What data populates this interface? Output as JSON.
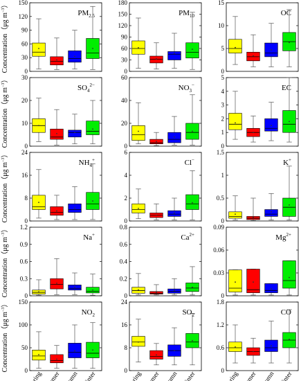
{
  "figure": {
    "seasons": [
      "Spring",
      "Summer",
      "Autumn",
      "Winter"
    ],
    "season_colors": [
      "#ffff00",
      "#ff0000",
      "#0000ff",
      "#00ee00"
    ],
    "ylabel": "Concentration（μg m⁻³）",
    "ylabel_main": "Concentration",
    "ylabel_unit": "（μg m",
    "ylabel_sup": "−3",
    "ylabel_close": "）"
  },
  "chart_data": [
    {
      "type": "box",
      "title_main": "PM",
      "title_sub": "2.5",
      "title_sup": "",
      "ylim": [
        0,
        150
      ],
      "yticks": [
        0,
        30,
        60,
        90,
        120,
        150
      ],
      "boxes": [
        {
          "min": 5,
          "q1": 33,
          "median": 42,
          "q3": 62,
          "max": 115,
          "mean": 50
        },
        {
          "min": 4,
          "q1": 14,
          "median": 22,
          "q3": 32,
          "max": 73,
          "mean": 25
        },
        {
          "min": 5,
          "q1": 20,
          "median": 28,
          "q3": 45,
          "max": 90,
          "mean": 33
        },
        {
          "min": 4,
          "q1": 28,
          "median": 40,
          "q3": 72,
          "max": 142,
          "mean": 50
        }
      ]
    },
    {
      "type": "box",
      "title_main": "PM",
      "title_sub": "10",
      "title_sup": "",
      "ylim": [
        0,
        180
      ],
      "yticks": [
        0,
        30,
        60,
        90,
        120,
        150,
        180
      ],
      "boxes": [
        {
          "min": 8,
          "q1": 45,
          "median": 60,
          "q3": 80,
          "max": 140,
          "mean": 62
        },
        {
          "min": 6,
          "q1": 22,
          "median": 32,
          "q3": 40,
          "max": 75,
          "mean": 33
        },
        {
          "min": 8,
          "q1": 30,
          "median": 45,
          "q3": 52,
          "max": 100,
          "mean": 47
        },
        {
          "min": 5,
          "q1": 35,
          "median": 50,
          "q3": 75,
          "max": 155,
          "mean": 58
        }
      ]
    },
    {
      "type": "box",
      "title_main": "OC",
      "title_sub": "",
      "title_sup": "",
      "ylim": [
        0,
        15
      ],
      "yticks": [
        0,
        5,
        10,
        15
      ],
      "boxes": [
        {
          "min": 1.5,
          "q1": 4,
          "median": 5,
          "q3": 7,
          "max": 12,
          "mean": 5.2
        },
        {
          "min": 1,
          "q1": 2.3,
          "median": 3.2,
          "q3": 4.2,
          "max": 8,
          "mean": 3.4
        },
        {
          "min": 1,
          "q1": 3.2,
          "median": 4,
          "q3": 6.2,
          "max": 10.5,
          "mean": 4.7
        },
        {
          "min": 1,
          "q1": 4.5,
          "median": 6.5,
          "q3": 8.5,
          "max": 13.5,
          "mean": 6.3
        }
      ]
    },
    {
      "type": "box",
      "title_main": "SO",
      "title_sub": "4",
      "title_sup": "2−",
      "ylim": [
        0,
        30
      ],
      "yticks": [
        0,
        10,
        20,
        30
      ],
      "boxes": [
        {
          "min": 2,
          "q1": 6,
          "median": 9,
          "q3": 12,
          "max": 21,
          "mean": 9
        },
        {
          "min": 0.5,
          "q1": 3,
          "median": 4,
          "q3": 7.5,
          "max": 16,
          "mean": 5.5
        },
        {
          "min": 1,
          "q1": 4,
          "median": 6,
          "q3": 7,
          "max": 14,
          "mean": 6
        },
        {
          "min": 1,
          "q1": 5,
          "median": 6.5,
          "q3": 11,
          "max": 20,
          "mean": 7.5
        }
      ]
    },
    {
      "type": "box",
      "title_main": "NO",
      "title_sub": "3",
      "title_sup": "−",
      "ylim": [
        0,
        60
      ],
      "yticks": [
        0,
        20,
        40,
        60
      ],
      "boxes": [
        {
          "min": 2,
          "q1": 5,
          "median": 10,
          "q3": 18,
          "max": 38,
          "mean": 13
        },
        {
          "min": 0.5,
          "q1": 2,
          "median": 3,
          "q3": 6,
          "max": 12,
          "mean": 4
        },
        {
          "min": 1,
          "q1": 3,
          "median": 6,
          "q3": 12,
          "max": 26,
          "mean": 8
        },
        {
          "min": 1,
          "q1": 6,
          "median": 12,
          "q3": 20,
          "max": 45,
          "mean": 13
        }
      ]
    },
    {
      "type": "box",
      "title_main": "EC",
      "title_sub": "",
      "title_sup": "",
      "ylim": [
        0,
        5
      ],
      "yticks": [
        0,
        1,
        2,
        3,
        4,
        5
      ],
      "boxes": [
        {
          "min": 0.5,
          "q1": 1.2,
          "median": 1.6,
          "q3": 2.4,
          "max": 4,
          "mean": 1.7
        },
        {
          "min": 0.3,
          "q1": 0.7,
          "median": 1,
          "q3": 1.3,
          "max": 2.2,
          "mean": 1
        },
        {
          "min": 0.4,
          "q1": 1.1,
          "median": 1.3,
          "q3": 2,
          "max": 3.2,
          "mean": 1.5
        },
        {
          "min": 0.3,
          "q1": 1,
          "median": 1.6,
          "q3": 2.6,
          "max": 5,
          "mean": 1.8
        }
      ]
    },
    {
      "type": "box",
      "title_main": "NH",
      "title_sub": "4",
      "title_sup": "+",
      "ylim": [
        0,
        24
      ],
      "yticks": [
        0,
        8,
        16,
        24
      ],
      "boxes": [
        {
          "min": 1,
          "q1": 4,
          "median": 5,
          "q3": 9,
          "max": 18,
          "mean": 6.5
        },
        {
          "min": 0.5,
          "q1": 2,
          "median": 3,
          "q3": 5,
          "max": 9,
          "mean": 3.5
        },
        {
          "min": 0.5,
          "q1": 3,
          "median": 4,
          "q3": 6,
          "max": 12,
          "mean": 4.5
        },
        {
          "min": 0.5,
          "q1": 4,
          "median": 6,
          "q3": 10,
          "max": 20,
          "mean": 7
        }
      ]
    },
    {
      "type": "box",
      "title_main": "Cl",
      "title_sub": "",
      "title_sup": "−",
      "ylim": [
        0,
        6
      ],
      "yticks": [
        0,
        2,
        4,
        6
      ],
      "boxes": [
        {
          "min": 0.2,
          "q1": 0.7,
          "median": 1,
          "q3": 1.5,
          "max": 2.8,
          "mean": 1.1
        },
        {
          "min": 0.1,
          "q1": 0.3,
          "median": 0.5,
          "q3": 0.7,
          "max": 1.5,
          "mean": 0.5
        },
        {
          "min": 0.1,
          "q1": 0.4,
          "median": 0.6,
          "q3": 0.9,
          "max": 2,
          "mean": 0.7
        },
        {
          "min": 0.1,
          "q1": 1,
          "median": 1.5,
          "q3": 2.3,
          "max": 4.4,
          "mean": 1.6
        }
      ]
    },
    {
      "type": "box",
      "title_main": "K",
      "title_sub": "",
      "title_sup": "+",
      "ylim": [
        0,
        1.5
      ],
      "yticks": [
        0,
        0.5,
        1,
        1.5
      ],
      "boxes": [
        {
          "min": 0.02,
          "q1": 0.06,
          "median": 0.1,
          "q3": 0.2,
          "max": 0.55,
          "mean": 0.15
        },
        {
          "min": 0.01,
          "q1": 0.03,
          "median": 0.06,
          "q3": 0.1,
          "max": 0.5,
          "mean": 0.08
        },
        {
          "min": 0.02,
          "q1": 0.1,
          "median": 0.15,
          "q3": 0.25,
          "max": 0.6,
          "mean": 0.2
        },
        {
          "min": 0.02,
          "q1": 0.1,
          "median": 0.3,
          "q3": 0.5,
          "max": 1.2,
          "mean": 0.35
        }
      ]
    },
    {
      "type": "box",
      "title_main": "Na",
      "title_sub": "",
      "title_sup": "+",
      "ylim": [
        0,
        1.2
      ],
      "yticks": [
        0,
        0.3,
        0.6,
        0.9,
        1.2
      ],
      "boxes": [
        {
          "min": 0.01,
          "q1": 0.03,
          "median": 0.06,
          "q3": 0.1,
          "max": 0.28,
          "mean": 0.07
        },
        {
          "min": 0.02,
          "q1": 0.12,
          "median": 0.2,
          "q3": 0.3,
          "max": 0.65,
          "mean": 0.22
        },
        {
          "min": 0.02,
          "q1": 0.1,
          "median": 0.13,
          "q3": 0.19,
          "max": 0.4,
          "mean": 0.15
        },
        {
          "min": 0.01,
          "q1": 0.05,
          "median": 0.08,
          "q3": 0.15,
          "max": 0.38,
          "mean": 0.1
        }
      ]
    },
    {
      "type": "box",
      "title_main": "Ca",
      "title_sub": "",
      "title_sup": "2+",
      "ylim": [
        0,
        0.8
      ],
      "yticks": [
        0,
        0.2,
        0.4,
        0.6,
        0.8
      ],
      "boxes": [
        {
          "min": 0.01,
          "q1": 0.03,
          "median": 0.06,
          "q3": 0.1,
          "max": 0.26,
          "mean": 0.07
        },
        {
          "min": 0.01,
          "q1": 0.02,
          "median": 0.03,
          "q3": 0.05,
          "max": 0.13,
          "mean": 0.04
        },
        {
          "min": 0.01,
          "q1": 0.03,
          "median": 0.05,
          "q3": 0.08,
          "max": 0.2,
          "mean": 0.06
        },
        {
          "min": 0.01,
          "q1": 0.05,
          "median": 0.09,
          "q3": 0.15,
          "max": 0.34,
          "mean": 0.1
        }
      ]
    },
    {
      "type": "box",
      "title_main": "Mg",
      "title_sub": "",
      "title_sup": "2+",
      "ylim": [
        0,
        0.09
      ],
      "yticks": [
        0,
        0.03,
        0.06,
        0.09
      ],
      "boxes": [
        {
          "min": 0.001,
          "q1": 0.005,
          "median": 0.01,
          "q3": 0.034,
          "max": 0.034,
          "mean": 0.018
        },
        {
          "min": 0.001,
          "q1": 0.004,
          "median": 0.008,
          "q3": 0.035,
          "max": 0.035,
          "mean": 0.018
        },
        {
          "min": 0.001,
          "q1": 0.004,
          "median": 0.007,
          "q3": 0.016,
          "max": 0.016,
          "mean": 0.009
        },
        {
          "min": 0.001,
          "q1": 0.01,
          "median": 0.02,
          "q3": 0.046,
          "max": 0.046,
          "mean": 0.024
        }
      ]
    },
    {
      "type": "box",
      "title_main": "NO",
      "title_sub": "2",
      "title_sup": "",
      "ylim": [
        0,
        150
      ],
      "yticks": [
        0,
        50,
        100,
        150
      ],
      "boxes": [
        {
          "min": 5,
          "q1": 23,
          "median": 32,
          "q3": 45,
          "max": 85,
          "mean": 35
        },
        {
          "min": 5,
          "q1": 17,
          "median": 22,
          "q3": 35,
          "max": 55,
          "mean": 25
        },
        {
          "min": 5,
          "q1": 28,
          "median": 40,
          "q3": 60,
          "max": 100,
          "mean": 43
        },
        {
          "min": 5,
          "q1": 28,
          "median": 38,
          "q3": 62,
          "max": 105,
          "mean": 45
        }
      ]
    },
    {
      "type": "box",
      "title_main": "SO",
      "title_sub": "2",
      "title_sup": "",
      "ylim": [
        0,
        24
      ],
      "yticks": [
        0,
        8,
        16,
        24
      ],
      "boxes": [
        {
          "min": 3,
          "q1": 8.5,
          "median": 10,
          "q3": 12,
          "max": 18,
          "mean": 10
        },
        {
          "min": 2,
          "q1": 4,
          "median": 5,
          "q3": 7,
          "max": 9.5,
          "mean": 5.5
        },
        {
          "min": 2,
          "q1": 5,
          "median": 7,
          "q3": 9,
          "max": 15,
          "mean": 7
        },
        {
          "min": 2,
          "q1": 8,
          "median": 10,
          "q3": 13,
          "max": 20,
          "mean": 10.5
        }
      ]
    },
    {
      "type": "box",
      "title_main": "CO",
      "title_sub": "",
      "title_sup": "",
      "ylim": [
        0,
        1.8
      ],
      "yticks": [
        0,
        0.6,
        1.2,
        1.8
      ],
      "boxes": [
        {
          "min": 0.2,
          "q1": 0.5,
          "median": 0.6,
          "q3": 0.75,
          "max": 1.2,
          "mean": 0.62
        },
        {
          "min": 0.2,
          "q1": 0.4,
          "median": 0.5,
          "q3": 0.6,
          "max": 0.85,
          "mean": 0.5
        },
        {
          "min": 0.2,
          "q1": 0.5,
          "median": 0.6,
          "q3": 0.8,
          "max": 1.3,
          "mean": 0.65
        },
        {
          "min": 0.2,
          "q1": 0.6,
          "median": 0.8,
          "q3": 1,
          "max": 1.6,
          "mean": 0.82
        }
      ]
    }
  ]
}
